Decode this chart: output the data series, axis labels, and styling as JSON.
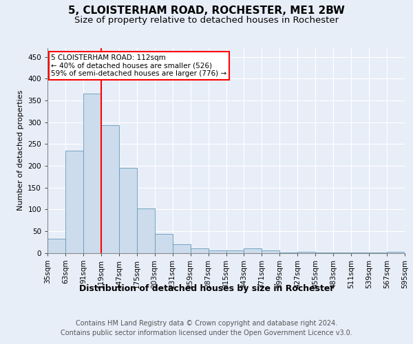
{
  "title": "5, CLOISTERHAM ROAD, ROCHESTER, ME1 2BW",
  "subtitle": "Size of property relative to detached houses in Rochester",
  "xlabel": "Distribution of detached houses by size in Rochester",
  "ylabel": "Number of detached properties",
  "bar_values": [
    33,
    234,
    365,
    293,
    195,
    102,
    44,
    19,
    11,
    5,
    5,
    10,
    5,
    1,
    2,
    1,
    1,
    1,
    1,
    3
  ],
  "categories": [
    "35sqm",
    "63sqm",
    "91sqm",
    "119sqm",
    "147sqm",
    "175sqm",
    "203sqm",
    "231sqm",
    "259sqm",
    "287sqm",
    "315sqm",
    "343sqm",
    "371sqm",
    "399sqm",
    "427sqm",
    "455sqm",
    "483sqm",
    "511sqm",
    "539sqm",
    "567sqm",
    "595sqm"
  ],
  "bar_color": "#ccdcec",
  "bar_edge_color": "#6699bb",
  "highlight_line_color": "red",
  "annotation_text": "5 CLOISTERHAM ROAD: 112sqm\n← 40% of detached houses are smaller (526)\n59% of semi-detached houses are larger (776) →",
  "annotation_box_color": "white",
  "annotation_box_edge_color": "red",
  "ylim": [
    0,
    470
  ],
  "yticks": [
    0,
    50,
    100,
    150,
    200,
    250,
    300,
    350,
    400,
    450
  ],
  "footer_text": "Contains HM Land Registry data © Crown copyright and database right 2024.\nContains public sector information licensed under the Open Government Licence v3.0.",
  "background_color": "#e8eef8",
  "plot_background_color": "#e8eef8",
  "grid_color": "white",
  "title_fontsize": 11,
  "subtitle_fontsize": 9.5,
  "xlabel_fontsize": 9,
  "ylabel_fontsize": 8,
  "tick_fontsize": 7.5,
  "footer_fontsize": 7
}
